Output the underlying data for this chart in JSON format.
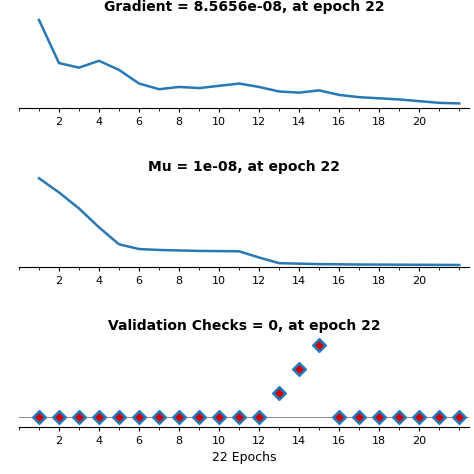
{
  "title1": "Gradient = 8.5656e-08, at epoch 22",
  "title2": "Mu = 1e-08, at epoch 22",
  "title3": "Validation Checks = 0, at epoch 22",
  "xlabel": "22 Epochs",
  "n_epochs": 22,
  "line_color": "#2878b5",
  "marker_blue": "#2878b5",
  "marker_red": "#cc0000",
  "gradient_values": [
    1.0,
    0.62,
    0.58,
    0.64,
    0.56,
    0.44,
    0.39,
    0.41,
    0.4,
    0.42,
    0.44,
    0.41,
    0.37,
    0.36,
    0.38,
    0.34,
    0.32,
    0.31,
    0.3,
    0.285,
    0.27,
    0.265
  ],
  "mu_values": [
    1.0,
    0.85,
    0.68,
    0.48,
    0.3,
    0.25,
    0.24,
    0.235,
    0.23,
    0.228,
    0.226,
    0.16,
    0.1,
    0.095,
    0.09,
    0.088,
    0.086,
    0.085,
    0.084,
    0.083,
    0.082,
    0.081
  ],
  "val_checks": [
    0,
    0,
    0,
    0,
    0,
    0,
    0,
    0,
    0,
    0,
    0,
    0,
    1,
    2,
    3,
    0,
    0,
    0,
    0,
    0,
    0,
    0
  ],
  "background": "#ffffff",
  "tick_label_fontsize": 8,
  "title_fontsize": 10
}
